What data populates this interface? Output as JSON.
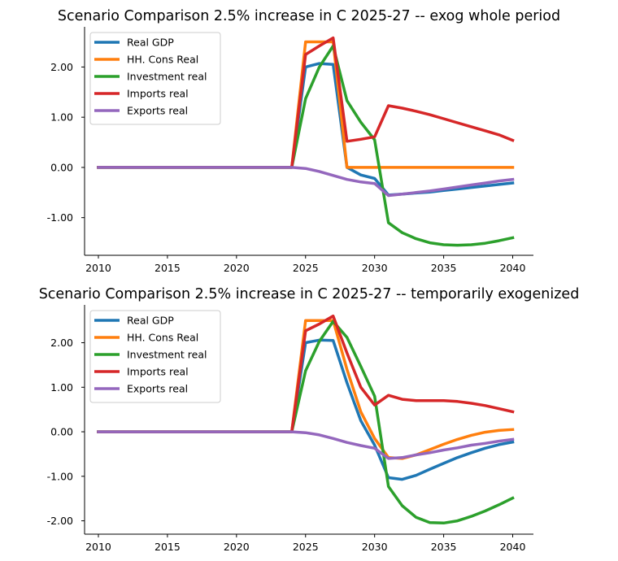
{
  "chart_data": [
    {
      "type": "line",
      "title": "Scenario Comparison 2.5% increase in C 2025-27 -- exog whole period",
      "xlabel": "",
      "ylabel": "",
      "xlim": [
        2009,
        2041.5
      ],
      "ylim": [
        -1.75,
        2.8
      ],
      "x_ticks": [
        2010,
        2015,
        2020,
        2025,
        2030,
        2035,
        2040
      ],
      "x_tick_labels": [
        "2010",
        "2015",
        "2020",
        "2025",
        "2030",
        "2035",
        "2040"
      ],
      "y_ticks": [
        -1,
        0,
        1,
        2
      ],
      "y_tick_labels": [
        "-1.00",
        "0.00",
        "1.00",
        "2.00"
      ],
      "grid": false,
      "legend_position": "top-left",
      "x": [
        2010,
        2011,
        2012,
        2013,
        2014,
        2015,
        2016,
        2017,
        2018,
        2019,
        2020,
        2021,
        2022,
        2023,
        2024,
        2025,
        2026,
        2027,
        2028,
        2029,
        2030,
        2031,
        2032,
        2033,
        2034,
        2035,
        2036,
        2037,
        2038,
        2039,
        2040
      ],
      "series": [
        {
          "name": "Real GDP",
          "color": "#1f77b4",
          "values": [
            0,
            0,
            0,
            0,
            0,
            0,
            0,
            0,
            0,
            0,
            0,
            0,
            0,
            0,
            0,
            2.0,
            2.07,
            2.05,
            0.0,
            -0.15,
            -0.22,
            -0.55,
            -0.53,
            -0.51,
            -0.49,
            -0.46,
            -0.43,
            -0.4,
            -0.37,
            -0.34,
            -0.31
          ]
        },
        {
          "name": "HH. Cons Real",
          "color": "#ff7f0e",
          "values": [
            0,
            0,
            0,
            0,
            0,
            0,
            0,
            0,
            0,
            0,
            0,
            0,
            0,
            0,
            0,
            2.5,
            2.5,
            2.5,
            0,
            0,
            0,
            0,
            0,
            0,
            0,
            0,
            0,
            0,
            0,
            0,
            0
          ]
        },
        {
          "name": "Investment real",
          "color": "#2ca02c",
          "values": [
            0,
            0,
            0,
            0,
            0,
            0,
            0,
            0,
            0,
            0,
            0,
            0,
            0,
            0,
            0,
            1.37,
            2.0,
            2.42,
            1.33,
            0.9,
            0.55,
            -1.1,
            -1.3,
            -1.42,
            -1.5,
            -1.54,
            -1.55,
            -1.54,
            -1.51,
            -1.46,
            -1.4
          ]
        },
        {
          "name": "Imports real",
          "color": "#d62728",
          "values": [
            0,
            0,
            0,
            0,
            0,
            0,
            0,
            0,
            0,
            0,
            0,
            0,
            0,
            0,
            0,
            2.25,
            2.42,
            2.58,
            0.52,
            0.56,
            0.61,
            1.23,
            1.18,
            1.12,
            1.05,
            0.97,
            0.89,
            0.81,
            0.73,
            0.65,
            0.54
          ]
        },
        {
          "name": "Exports real",
          "color": "#9467bd",
          "values": [
            0,
            0,
            0,
            0,
            0,
            0,
            0,
            0,
            0,
            0,
            0,
            0,
            0,
            0,
            0,
            -0.02,
            -0.08,
            -0.16,
            -0.24,
            -0.29,
            -0.32,
            -0.56,
            -0.53,
            -0.5,
            -0.47,
            -0.43,
            -0.39,
            -0.35,
            -0.31,
            -0.27,
            -0.24
          ]
        }
      ]
    },
    {
      "type": "line",
      "title": "Scenario Comparison 2.5% increase in C 2025-27 -- temporarily exogenized",
      "xlabel": "",
      "ylabel": "",
      "xlim": [
        2009,
        2041.5
      ],
      "ylim": [
        -2.3,
        2.85
      ],
      "x_ticks": [
        2010,
        2015,
        2020,
        2025,
        2030,
        2035,
        2040
      ],
      "x_tick_labels": [
        "2010",
        "2015",
        "2020",
        "2025",
        "2030",
        "2035",
        "2040"
      ],
      "y_ticks": [
        -2,
        -1,
        0,
        1,
        2
      ],
      "y_tick_labels": [
        "-2.00",
        "-1.00",
        "0.00",
        "1.00",
        "2.00"
      ],
      "grid": false,
      "legend_position": "top-left",
      "x": [
        2010,
        2011,
        2012,
        2013,
        2014,
        2015,
        2016,
        2017,
        2018,
        2019,
        2020,
        2021,
        2022,
        2023,
        2024,
        2025,
        2026,
        2027,
        2028,
        2029,
        2030,
        2031,
        2032,
        2033,
        2034,
        2035,
        2036,
        2037,
        2038,
        2039,
        2040
      ],
      "series": [
        {
          "name": "Real GDP",
          "color": "#1f77b4",
          "values": [
            0,
            0,
            0,
            0,
            0,
            0,
            0,
            0,
            0,
            0,
            0,
            0,
            0,
            0,
            0,
            2.0,
            2.06,
            2.05,
            1.1,
            0.25,
            -0.3,
            -1.03,
            -1.07,
            -0.98,
            -0.84,
            -0.71,
            -0.58,
            -0.47,
            -0.37,
            -0.29,
            -0.23
          ]
        },
        {
          "name": "HH. Cons Real",
          "color": "#ff7f0e",
          "values": [
            0,
            0,
            0,
            0,
            0,
            0,
            0,
            0,
            0,
            0,
            0,
            0,
            0,
            0,
            0,
            2.5,
            2.5,
            2.5,
            1.4,
            0.45,
            -0.15,
            -0.58,
            -0.6,
            -0.52,
            -0.4,
            -0.28,
            -0.17,
            -0.08,
            -0.01,
            0.03,
            0.05
          ]
        },
        {
          "name": "Investment real",
          "color": "#2ca02c",
          "values": [
            0,
            0,
            0,
            0,
            0,
            0,
            0,
            0,
            0,
            0,
            0,
            0,
            0,
            0,
            0,
            1.37,
            2.03,
            2.48,
            2.12,
            1.47,
            0.8,
            -1.23,
            -1.66,
            -1.92,
            -2.04,
            -2.05,
            -2.0,
            -1.9,
            -1.78,
            -1.64,
            -1.49
          ]
        },
        {
          "name": "Imports real",
          "color": "#d62728",
          "values": [
            0,
            0,
            0,
            0,
            0,
            0,
            0,
            0,
            0,
            0,
            0,
            0,
            0,
            0,
            0,
            2.27,
            2.42,
            2.6,
            1.77,
            1.0,
            0.6,
            0.82,
            0.73,
            0.7,
            0.7,
            0.7,
            0.68,
            0.64,
            0.59,
            0.52,
            0.45
          ]
        },
        {
          "name": "Exports real",
          "color": "#9467bd",
          "values": [
            0,
            0,
            0,
            0,
            0,
            0,
            0,
            0,
            0,
            0,
            0,
            0,
            0,
            0,
            0,
            -0.02,
            -0.07,
            -0.15,
            -0.24,
            -0.31,
            -0.37,
            -0.6,
            -0.58,
            -0.52,
            -0.47,
            -0.41,
            -0.36,
            -0.3,
            -0.26,
            -0.21,
            -0.17
          ]
        }
      ]
    }
  ]
}
